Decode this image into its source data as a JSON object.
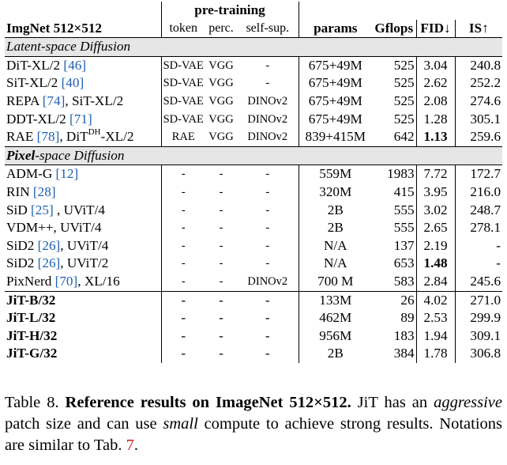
{
  "table": {
    "header": {
      "title": "ImgNet 512×512",
      "pretraining_group": "pre-training",
      "token": "token",
      "perc": "perc.",
      "selfsup": "self-sup.",
      "params": "params",
      "gflops": "Gflops",
      "fid": "FID↓",
      "is": "IS↑"
    },
    "sections": [
      {
        "title_bold": "",
        "title_rest": "Latent-space Diffusion",
        "rows": [
          {
            "name": "DiT-XL/2 ",
            "cite": "[46]",
            "name_tail": "",
            "token": "SD-VAE",
            "perc": "VGG",
            "selfsup": "-",
            "params": "675+49M",
            "gflops": "525",
            "fid": "3.04",
            "is": "240.8",
            "fid_bold": false
          },
          {
            "name": "SiT-XL/2 ",
            "cite": "[40]",
            "name_tail": "",
            "token": "SD-VAE",
            "perc": "VGG",
            "selfsup": "-",
            "params": "675+49M",
            "gflops": "525",
            "fid": "2.62",
            "is": "252.2",
            "fid_bold": false
          },
          {
            "name": "REPA ",
            "cite": "[74]",
            "name_tail": ", SiT-XL/2",
            "token": "SD-VAE",
            "perc": "VGG",
            "selfsup": "DINOv2",
            "params": "675+49M",
            "gflops": "525",
            "fid": "2.08",
            "is": "274.6",
            "fid_bold": false
          },
          {
            "name": "DDT-XL/2 ",
            "cite": "[71]",
            "name_tail": "",
            "token": "SD-VAE",
            "perc": "VGG",
            "selfsup": "DINOv2",
            "params": "675+49M",
            "gflops": "525",
            "fid": "1.28",
            "is": "305.1",
            "fid_bold": false
          },
          {
            "name": "RAE ",
            "cite": "[78]",
            "name_tail": ", DiT",
            "sup": "DH",
            "name_tail2": "-XL/2",
            "token": "RAE",
            "perc": "VGG",
            "selfsup": "DINOv2",
            "params": "839+415M",
            "gflops": "642",
            "fid": "1.13",
            "is": "259.6",
            "fid_bold": true
          }
        ]
      },
      {
        "title_bold": "Pixel",
        "title_rest": "-space Diffusion",
        "rows": [
          {
            "name": "ADM-G ",
            "cite": "[12]",
            "name_tail": "",
            "token": "-",
            "perc": "-",
            "selfsup": "-",
            "params": "559M",
            "gflops": "1983",
            "fid": "7.72",
            "is": "172.7",
            "fid_bold": false
          },
          {
            "name": "RIN ",
            "cite": "[28]",
            "name_tail": "",
            "token": "-",
            "perc": "-",
            "selfsup": "-",
            "params": "320M",
            "gflops": "415",
            "fid": "3.95",
            "is": "216.0",
            "fid_bold": false
          },
          {
            "name": "SiD ",
            "cite": "[25]",
            "name_tail": " , UViT/4",
            "token": "-",
            "perc": "-",
            "selfsup": "-",
            "params": "2B",
            "gflops": "555",
            "fid": "3.02",
            "is": "248.7",
            "fid_bold": false
          },
          {
            "name": "VDM++, UViT/4",
            "cite": "",
            "name_tail": "",
            "token": "-",
            "perc": "-",
            "selfsup": "-",
            "params": "2B",
            "gflops": "555",
            "fid": "2.65",
            "is": "278.1",
            "fid_bold": false
          },
          {
            "name": "SiD2 ",
            "cite": "[26]",
            "name_tail": ", UViT/4",
            "token": "-",
            "perc": "-",
            "selfsup": "-",
            "params": "N/A",
            "gflops": "137",
            "fid": "2.19",
            "is": "-",
            "fid_bold": false
          },
          {
            "name": "SiD2 ",
            "cite": "[26]",
            "name_tail": ", UViT/2",
            "token": "-",
            "perc": "-",
            "selfsup": "-",
            "params": "N/A",
            "gflops": "653",
            "fid": "1.48",
            "is": "-",
            "fid_bold": true
          },
          {
            "name": "PixNerd ",
            "cite": "[70]",
            "name_tail": ", XL/16",
            "token": "-",
            "perc": "-",
            "selfsup": "DINOv2",
            "params": "700 M",
            "gflops": "583",
            "fid": "2.84",
            "is": "245.6",
            "fid_bold": false
          }
        ]
      }
    ],
    "jit_rows": [
      {
        "name": "JiT-B/32",
        "token": "-",
        "perc": "-",
        "selfsup": "-",
        "params": "133M",
        "gflops": "26",
        "fid": "4.02",
        "is": "271.0"
      },
      {
        "name": "JiT-L/32",
        "token": "-",
        "perc": "-",
        "selfsup": "-",
        "params": "462M",
        "gflops": "89",
        "fid": "2.53",
        "is": "299.9"
      },
      {
        "name": "JiT-H/32",
        "token": "-",
        "perc": "-",
        "selfsup": "-",
        "params": "956M",
        "gflops": "183",
        "fid": "1.94",
        "is": "309.1"
      },
      {
        "name": "JiT-G/32",
        "token": "-",
        "perc": "-",
        "selfsup": "-",
        "params": "2B",
        "gflops": "384",
        "fid": "1.78",
        "is": "306.8"
      }
    ]
  },
  "caption": {
    "label": "Table 8.",
    "bold_title": "Reference results on ImageNet 512×512.",
    "t1": " JiT has an ",
    "i1": "aggressive",
    "t2": " patch size and can use ",
    "i2": "small",
    "t3": " compute to achieve strong results. Notations are similar to Tab. ",
    "ref": "7",
    "t4": "."
  }
}
